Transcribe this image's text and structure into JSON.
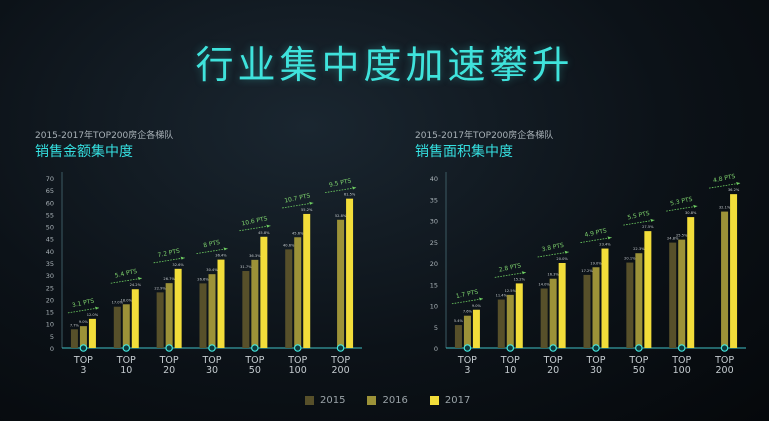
{
  "page": {
    "title": "行业集中度加速攀升"
  },
  "colors": {
    "2015": "#57502a",
    "2016": "#9c9238",
    "2017": "#f2dd3a",
    "accent": "#35dfe0",
    "pts": "#7ed36d"
  },
  "legend": [
    {
      "label": "2015",
      "color": "#57502a"
    },
    {
      "label": "2016",
      "color": "#9c9238"
    },
    {
      "label": "2017",
      "color": "#f2dd3a"
    }
  ],
  "chart_data": [
    {
      "type": "bar",
      "title": "销售金额集中度",
      "subtitle": "2015-2017年TOP200房企各梯队",
      "categories": [
        "TOP\n3",
        "TOP\n10",
        "TOP\n20",
        "TOP\n30",
        "TOP\n50",
        "TOP\n100",
        "TOP\n200"
      ],
      "series": [
        {
          "name": "2015",
          "values": [
            7.7,
            17.0,
            22.9,
            26.6,
            31.7,
            40.6,
            null
          ]
        },
        {
          "name": "2016",
          "values": [
            9.0,
            18.0,
            26.7,
            30.4,
            36.3,
            45.6,
            52.8
          ]
        },
        {
          "name": "2017",
          "values": [
            12.0,
            24.2,
            32.6,
            36.4,
            45.8,
            55.2,
            61.5
          ]
        }
      ],
      "pts": [
        "3.1 PTS",
        "5.4 PTS",
        "7.2 PTS",
        "8 PTS",
        "10.6 PTS",
        "10.7 PTS",
        "9.5 PTS"
      ],
      "ylim": [
        0,
        70
      ],
      "yticks": [
        0,
        5,
        10,
        15,
        20,
        25,
        30,
        35,
        40,
        45,
        50,
        55,
        60,
        65,
        70
      ]
    },
    {
      "type": "bar",
      "title": "销售面积集中度",
      "subtitle": "2015-2017年TOP200房企各梯队",
      "categories": [
        "TOP\n3",
        "TOP\n10",
        "TOP\n20",
        "TOP\n30",
        "TOP\n50",
        "TOP\n100",
        "TOP\n200"
      ],
      "series": [
        {
          "name": "2015",
          "values": [
            5.4,
            11.4,
            14.0,
            17.2,
            20.1,
            24.8,
            null
          ]
        },
        {
          "name": "2016",
          "values": [
            7.6,
            12.5,
            16.3,
            19.0,
            22.3,
            25.5,
            32.1
          ]
        },
        {
          "name": "2017",
          "values": [
            9.0,
            15.2,
            20.0,
            23.4,
            27.5,
            30.8,
            36.2
          ]
        }
      ],
      "pts": [
        "1.7 PTS",
        "2.8 PTS",
        "3.8 PTS",
        "4.9 PTS",
        "5.5 PTS",
        "5.3 PTS",
        "4.8 PTS"
      ],
      "ylim": [
        0,
        40
      ],
      "yticks": [
        0,
        5,
        10,
        15,
        20,
        25,
        30,
        35,
        40
      ]
    }
  ]
}
